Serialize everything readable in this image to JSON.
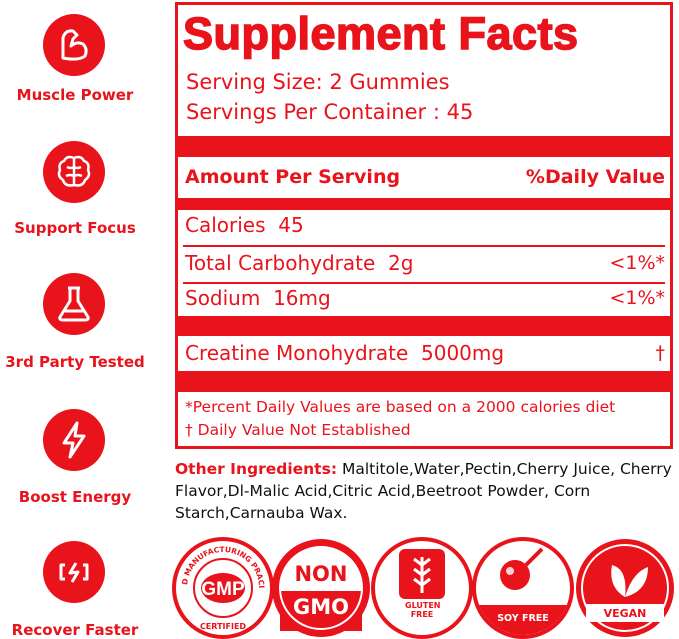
{
  "features": [
    {
      "label": "Muscle Power"
    },
    {
      "label": "Support Focus"
    },
    {
      "label": "3rd Party Tested"
    },
    {
      "label": "Boost Energy"
    },
    {
      "label": "Recover Faster"
    }
  ],
  "facts": {
    "title": "Supplement Facts",
    "serving_size": "Serving Size: 2 Gummies",
    "servings_per_container": "Servings Per Container : 45",
    "amount_header": "Amount Per Serving",
    "dv_header": "%Daily Value",
    "rows": [
      {
        "nutrient": "Calories",
        "amount": "45"
      },
      {
        "nutrient": "Total Carbohydrate",
        "amount": "2g",
        "dv": "<1%*"
      },
      {
        "nutrient": "Sodium",
        "amount": "16mg",
        "dv": "<1%*"
      },
      {
        "nutrient": "Creatine Monohydrate",
        "amount": "5000mg",
        "dv": "†"
      }
    ],
    "footnotes": [
      "*Percent Daily Values are based on a 2000 calories diet",
      "† Daily Value Not Established"
    ]
  },
  "other_ingredients": {
    "label": "Other Ingredients:",
    "text": "Maltitole,Water,Pectin,Cherry Juice, Cherry Flavor,Dl-Malic Acid,Citric Acid,Beetroot Powder, Corn Starch,Carnauba Wax."
  },
  "badges": {
    "gmp": {
      "arc": "GOOD MANUFACTURING PRACITCE",
      "main": "GMP",
      "bottom": "CERTIFIED"
    },
    "non_gmo": {
      "top": "NON",
      "bottom": "GMO"
    },
    "gluten_free": "GLUTEN FREE",
    "soy_free": "SOY FREE",
    "vegan": "VEGAN"
  }
}
